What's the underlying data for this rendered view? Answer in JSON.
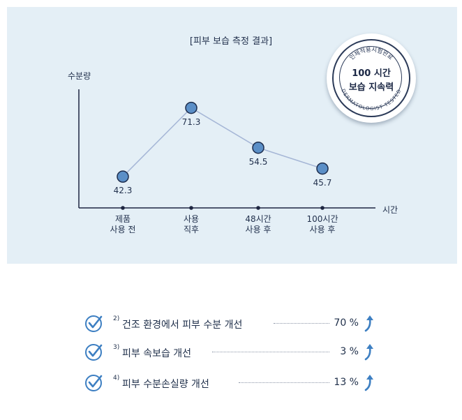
{
  "chart_data": {
    "type": "line",
    "title": "[피부 보습 측정 결과]",
    "ylabel": "수분량",
    "xlabel": "시간",
    "categories": [
      [
        "제품",
        "사용 전"
      ],
      [
        "사용",
        "직후"
      ],
      [
        "48시간",
        "사용 후"
      ],
      [
        "100시간",
        "사용 후"
      ]
    ],
    "values": [
      42.3,
      71.3,
      54.5,
      45.7
    ],
    "value_labels": [
      "42.3",
      "71.3",
      "54.5",
      "45.7"
    ],
    "ylim": [
      30,
      80
    ],
    "grid": false,
    "colors": {
      "line": "#a5b6d6",
      "marker_fill": "#5b8fc7",
      "marker_stroke": "#1d2d4d",
      "axis": "#1d2540"
    }
  },
  "stamp": {
    "line1": "100 시간",
    "line2": "보습 지속력",
    "arc_top": "인체적용시험완료",
    "arc_bottom": "DERMATOLOGIST TESTED"
  },
  "benefits": [
    {
      "ref": "2)",
      "text": "건조 환경에서 피부 수분 개선",
      "value": "70 %",
      "icon": "check-circle-icon"
    },
    {
      "ref": "3)",
      "text": "피부 속보습 개선",
      "value": "3 %",
      "icon": "check-circle-icon"
    },
    {
      "ref": "4)",
      "text": "피부 수분손실량 개선",
      "value": "13 %",
      "icon": "check-circle-icon"
    }
  ],
  "theme": {
    "panel_bg": "#e4eff6",
    "accent": "#3d7fc2",
    "text": "#1f2f4a"
  }
}
